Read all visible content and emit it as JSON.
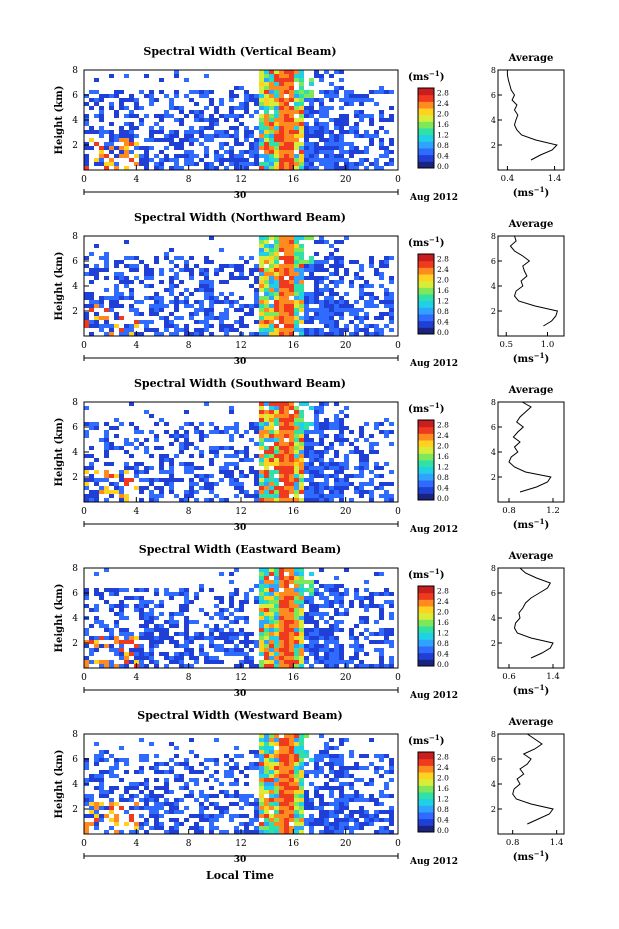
{
  "figure": {
    "xlabel": "Local Time",
    "date_label": "Aug 2012",
    "day_label": "30",
    "height_label": "Height (km)",
    "unit_label": "(ms",
    "unit_sup": "−1",
    "average_title": "Average"
  },
  "colorbar": {
    "ticks": [
      "0.0",
      "0.4",
      "0.8",
      "1.2",
      "1.6",
      "2.0",
      "2.4",
      "2.8"
    ],
    "colors": [
      "#1a237e",
      "#1f3fd6",
      "#2f6bff",
      "#2fa3ff",
      "#1fd0e6",
      "#2fe0a8",
      "#7ee85a",
      "#d8ec3a",
      "#ffd21f",
      "#ff8a1f",
      "#f03a1f",
      "#c81e1e"
    ]
  },
  "chart_data": [
    {
      "type": "heatmap",
      "title": "Spectral Width (Vertical Beam)",
      "x_ticks": [
        "0",
        "4",
        "8",
        "12",
        "16",
        "20",
        "0"
      ],
      "y_ticks": [
        "2",
        "4",
        "6",
        "8"
      ],
      "xlim": [
        0,
        24
      ],
      "ylim": [
        0,
        8
      ],
      "colorbar_range": [
        0.0,
        2.8
      ],
      "avg_profile": {
        "title": "Average",
        "x_ticks": [
          "0.4",
          "1.4"
        ],
        "xlim": [
          0.2,
          1.6
        ],
        "height": [
          0.8,
          1.2,
          1.6,
          2.0,
          2.4,
          2.8,
          3.2,
          3.6,
          4.0,
          4.4,
          4.8,
          5.2,
          5.6,
          6.0,
          6.4,
          6.8,
          7.2,
          7.6,
          8.0
        ],
        "values": [
          0.9,
          1.1,
          1.35,
          1.45,
          1.0,
          0.7,
          0.6,
          0.55,
          0.58,
          0.62,
          0.55,
          0.6,
          0.5,
          0.55,
          0.48,
          0.45,
          0.42,
          0.4,
          0.4
        ]
      }
    },
    {
      "type": "heatmap",
      "title": "Spectral Width (Northward Beam)",
      "x_ticks": [
        "0",
        "4",
        "8",
        "12",
        "16",
        "20",
        "0"
      ],
      "y_ticks": [
        "2",
        "4",
        "6",
        "8"
      ],
      "xlim": [
        0,
        24
      ],
      "ylim": [
        0,
        8
      ],
      "colorbar_range": [
        0.0,
        2.8
      ],
      "avg_profile": {
        "title": "Average",
        "x_ticks": [
          "0.5",
          "1.0"
        ],
        "xlim": [
          0.4,
          1.2
        ],
        "height": [
          0.8,
          1.2,
          1.6,
          2.0,
          2.4,
          2.8,
          3.2,
          3.6,
          4.0,
          4.4,
          4.8,
          5.2,
          5.6,
          6.0,
          6.4,
          6.8,
          7.2,
          7.6,
          8.0
        ],
        "values": [
          0.95,
          1.05,
          1.1,
          1.12,
          0.85,
          0.65,
          0.6,
          0.62,
          0.7,
          0.68,
          0.75,
          0.72,
          0.7,
          0.78,
          0.7,
          0.6,
          0.55,
          0.62,
          0.6
        ]
      }
    },
    {
      "type": "heatmap",
      "title": "Spectral Width (Southward Beam)",
      "x_ticks": [
        "0",
        "4",
        "8",
        "12",
        "16",
        "20",
        "0"
      ],
      "y_ticks": [
        "2",
        "4",
        "6",
        "8"
      ],
      "xlim": [
        0,
        24
      ],
      "ylim": [
        0,
        8
      ],
      "colorbar_range": [
        0.0,
        2.8
      ],
      "avg_profile": {
        "title": "Average",
        "x_ticks": [
          "0.8",
          "1.2"
        ],
        "xlim": [
          0.7,
          1.3
        ],
        "height": [
          0.8,
          1.2,
          1.6,
          2.0,
          2.4,
          2.8,
          3.2,
          3.6,
          4.0,
          4.4,
          4.8,
          5.2,
          5.6,
          6.0,
          6.4,
          6.8,
          7.2,
          7.6,
          8.0
        ],
        "values": [
          0.9,
          1.05,
          1.15,
          1.18,
          0.95,
          0.85,
          0.8,
          0.82,
          0.88,
          0.85,
          0.9,
          0.84,
          0.88,
          0.93,
          0.87,
          0.9,
          0.95,
          1.0,
          0.92
        ]
      }
    },
    {
      "type": "heatmap",
      "title": "Spectral Width (Eastward Beam)",
      "x_ticks": [
        "0",
        "4",
        "8",
        "12",
        "16",
        "20",
        "0"
      ],
      "y_ticks": [
        "2",
        "4",
        "6",
        "8"
      ],
      "xlim": [
        0,
        24
      ],
      "ylim": [
        0,
        8
      ],
      "colorbar_range": [
        0.0,
        2.8
      ],
      "avg_profile": {
        "title": "Average",
        "x_ticks": [
          "0.6",
          "1.4"
        ],
        "xlim": [
          0.4,
          1.6
        ],
        "height": [
          0.8,
          1.2,
          1.6,
          2.0,
          2.4,
          2.8,
          3.2,
          3.6,
          4.0,
          4.4,
          4.8,
          5.2,
          5.6,
          6.0,
          6.4,
          6.8,
          7.2,
          7.6,
          8.0
        ],
        "values": [
          1.0,
          1.2,
          1.35,
          1.4,
          1.0,
          0.75,
          0.7,
          0.72,
          0.8,
          0.78,
          0.85,
          0.9,
          1.0,
          1.15,
          1.3,
          1.35,
          1.1,
          0.9,
          0.8
        ]
      }
    },
    {
      "type": "heatmap",
      "title": "Spectral Width (Westward Beam)",
      "x_ticks": [
        "0",
        "4",
        "8",
        "12",
        "16",
        "20",
        "0"
      ],
      "y_ticks": [
        "2",
        "4",
        "6",
        "8"
      ],
      "xlim": [
        0,
        24
      ],
      "ylim": [
        0,
        8
      ],
      "colorbar_range": [
        0.0,
        2.8
      ],
      "avg_profile": {
        "title": "Average",
        "x_ticks": [
          "0.8",
          "1.4"
        ],
        "xlim": [
          0.6,
          1.5
        ],
        "height": [
          0.8,
          1.2,
          1.6,
          2.0,
          2.4,
          2.8,
          3.2,
          3.6,
          4.0,
          4.4,
          4.8,
          5.2,
          5.6,
          6.0,
          6.4,
          6.8,
          7.2,
          7.6,
          8.0
        ],
        "values": [
          1.0,
          1.15,
          1.3,
          1.35,
          1.05,
          0.85,
          0.8,
          0.82,
          0.9,
          0.86,
          0.95,
          0.9,
          1.0,
          1.05,
          0.95,
          1.1,
          1.2,
          1.1,
          1.0
        ]
      }
    }
  ]
}
